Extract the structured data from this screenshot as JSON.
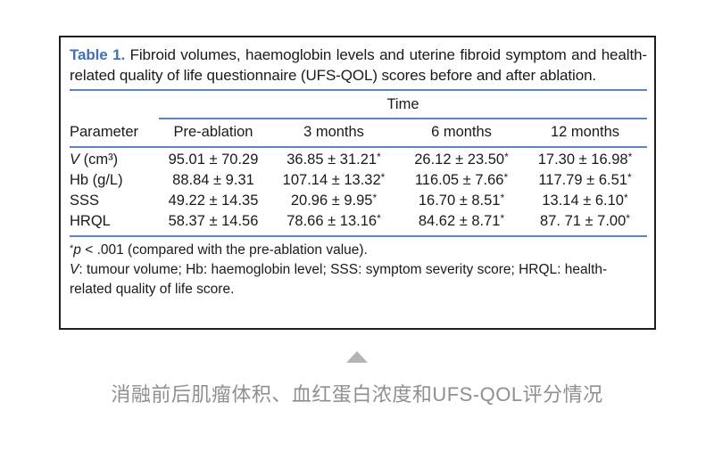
{
  "colors": {
    "accent_blue": "#4470b4",
    "rule_blue": "#5b84ba",
    "text_black": "#1a1a1a",
    "border_black": "#1f1f1f",
    "caption_gray": "#8f8f8f",
    "arrow_gray": "#b4b4b4",
    "background": "#ffffff"
  },
  "table": {
    "label": "Table 1.",
    "caption": " Fibroid volumes, haemoglobin levels and uterine fibroid symptom and health-related quality of life questionnaire (UFS-QOL) scores before and after ablation.",
    "time_header": "Time",
    "columns": [
      "Parameter",
      "Pre-ablation",
      "3 months",
      "6 months",
      "12 months"
    ],
    "rows": [
      {
        "param_italic": "V",
        "param_rest": " (cm³)",
        "c1": {
          "v": "95.01 ± 70.29",
          "s": ""
        },
        "c2": {
          "v": "36.85 ± 31.21",
          "s": "*"
        },
        "c3": {
          "v": "26.12 ± 23.50",
          "s": "*"
        },
        "c4": {
          "v": "17.30 ± 16.98",
          "s": "*"
        }
      },
      {
        "param_italic": "",
        "param_rest": "Hb (g/L)",
        "c1": {
          "v": "88.84 ± 9.31",
          "s": ""
        },
        "c2": {
          "v": "107.14 ± 13.32",
          "s": "*"
        },
        "c3": {
          "v": "116.05 ± 7.66",
          "s": "*"
        },
        "c4": {
          "v": "117.79 ± 6.51",
          "s": "*"
        }
      },
      {
        "param_italic": "",
        "param_rest": "SSS",
        "c1": {
          "v": "49.22 ± 14.35",
          "s": ""
        },
        "c2": {
          "v": "20.96 ± 9.95",
          "s": "*"
        },
        "c3": {
          "v": "16.70 ± 8.51",
          "s": "*"
        },
        "c4": {
          "v": "13.14 ± 6.10",
          "s": "*"
        }
      },
      {
        "param_italic": "",
        "param_rest": "HRQL",
        "c1": {
          "v": "58.37 ± 14.56",
          "s": ""
        },
        "c2": {
          "v": "78.66 ± 13.16",
          "s": "*"
        },
        "c3": {
          "v": "84.62 ± 8.71",
          "s": "*"
        },
        "c4": {
          "v": "87. 71 ± 7.00",
          "s": "*"
        }
      }
    ],
    "footnotes": {
      "line1_sup": "*",
      "line1_italic": "p",
      "line1_rest": " < .001 (compared with the pre-ablation value).",
      "line2_italic": "V",
      "line2_rest": ": tumour volume; Hb: haemoglobin level; SSS: symptom severity score; HRQL: health-related quality of life score."
    }
  },
  "footer": {
    "caption": "消融前后肌瘤体积、血红蛋白浓度和UFS-QOL评分情况"
  }
}
